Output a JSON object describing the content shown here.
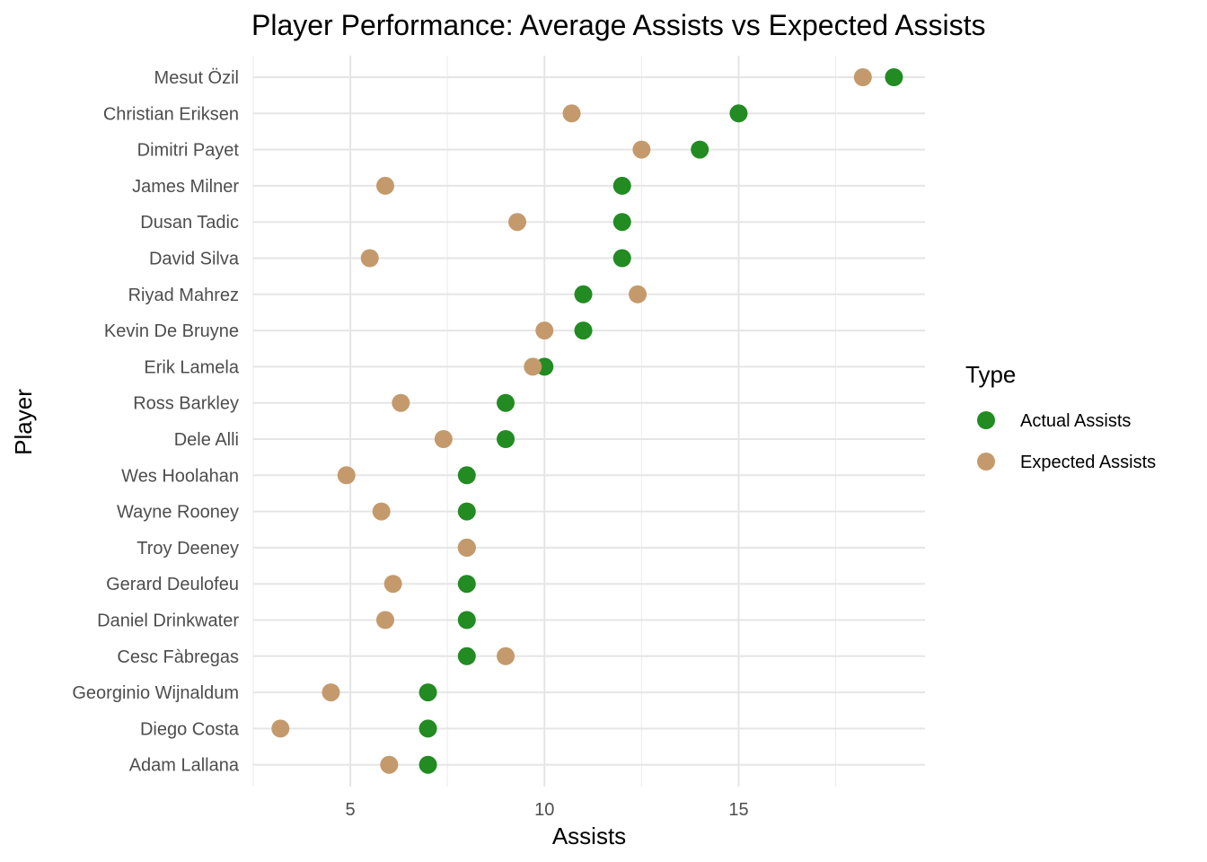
{
  "chart_data": {
    "type": "scatter",
    "title": "Player Performance: Average Assists vs Expected Assists",
    "xlabel": "Assists",
    "ylabel": "Player",
    "xlim": [
      2.5,
      19.8
    ],
    "xticks": [
      5,
      10,
      15
    ],
    "grid": true,
    "legend": {
      "title": "Type",
      "position": "right",
      "entries": [
        "Actual Assists",
        "Expected Assists"
      ]
    },
    "categories": [
      "Mesut Özil",
      "Christian Eriksen",
      "Dimitri Payet",
      "James Milner",
      "Dusan Tadic",
      "David Silva",
      "Riyad Mahrez",
      "Kevin De Bruyne",
      "Erik Lamela",
      "Ross Barkley",
      "Dele Alli",
      "Wes Hoolahan",
      "Wayne Rooney",
      "Troy Deeney",
      "Gerard Deulofeu",
      "Daniel Drinkwater",
      "Cesc Fàbregas",
      "Georginio Wijnaldum",
      "Diego Costa",
      "Adam Lallana"
    ],
    "series": [
      {
        "name": "Actual Assists",
        "color": "#228B22",
        "values": [
          19,
          15,
          14,
          12,
          12,
          12,
          11,
          11,
          10,
          9,
          9,
          8,
          8,
          8,
          8,
          8,
          8,
          7,
          7,
          7
        ]
      },
      {
        "name": "Expected Assists",
        "color": "#C49A6C",
        "values": [
          18.2,
          10.7,
          12.5,
          5.9,
          9.3,
          5.5,
          12.4,
          10.0,
          9.7,
          6.3,
          7.4,
          4.9,
          5.8,
          8.0,
          6.1,
          5.9,
          9.0,
          4.5,
          3.2,
          6.0
        ]
      }
    ]
  }
}
